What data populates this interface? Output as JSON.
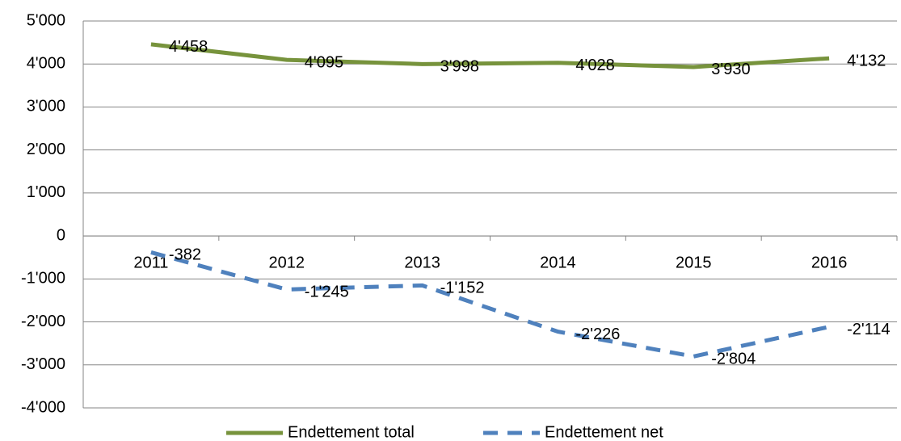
{
  "chart_data": {
    "type": "line",
    "categories": [
      "2011",
      "2012",
      "2013",
      "2014",
      "2015",
      "2016"
    ],
    "series": [
      {
        "name": "Endettement total",
        "color": "#77933c",
        "dash": false,
        "values": [
          4458,
          4095,
          3998,
          4028,
          3930,
          4132
        ],
        "value_labels": [
          "4'458",
          "4'095",
          "3'998",
          "4'028",
          "3'930",
          "4'132"
        ]
      },
      {
        "name": "Endettement net",
        "color": "#4f81bd",
        "dash": true,
        "values": [
          -382,
          -1245,
          -1152,
          -2226,
          -2804,
          -2114
        ],
        "value_labels": [
          "-382",
          "-1'245",
          "-1'152",
          "-2'226",
          "-2'804",
          "-2'114"
        ]
      }
    ],
    "ylim": [
      -4000,
      5000
    ],
    "yticks": [
      {
        "value": -4000,
        "label": "-4'000"
      },
      {
        "value": -3000,
        "label": "-3'000"
      },
      {
        "value": -2000,
        "label": "-2'000"
      },
      {
        "value": -1000,
        "label": "-1'000"
      },
      0,
      {
        "value": 1000,
        "label": "1'000"
      },
      {
        "value": 2000,
        "label": "2'000"
      },
      {
        "value": 3000,
        "label": "3'000"
      },
      {
        "value": 4000,
        "label": "4'000"
      },
      {
        "value": 5000,
        "label": "5'000"
      }
    ],
    "grid": true,
    "legend": "bottom"
  }
}
